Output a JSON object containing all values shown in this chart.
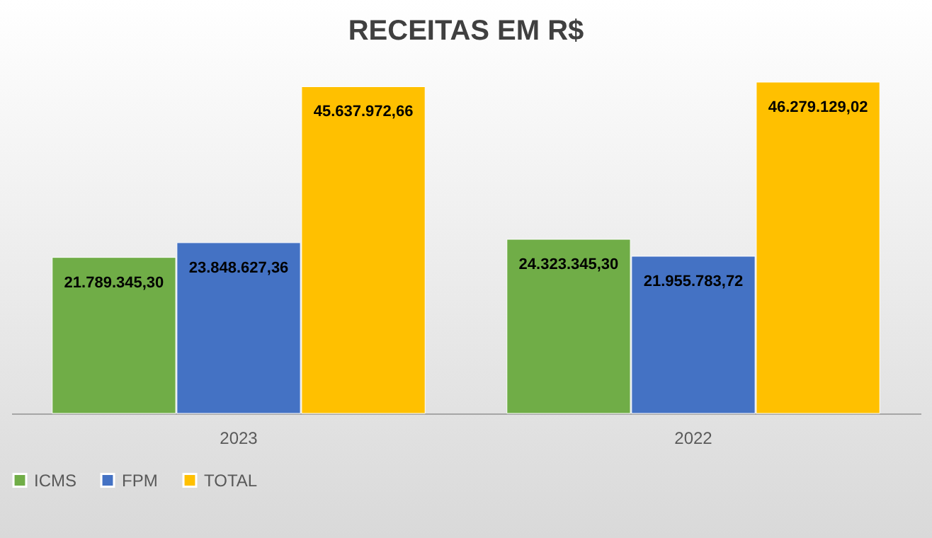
{
  "chart_data": {
    "type": "bar",
    "title": "RECEITAS EM R$",
    "categories": [
      "2023",
      "2022"
    ],
    "series": [
      {
        "name": "ICMS",
        "color": "#70ad47",
        "values": [
          21789345.3,
          24323345.3
        ],
        "value_labels": [
          "21.789.345,30",
          "24.323.345,30"
        ]
      },
      {
        "name": "FPM",
        "color": "#4472c4",
        "values": [
          23848627.36,
          21955783.72
        ],
        "value_labels": [
          "23.848.627,36",
          "21.955.783,72"
        ]
      },
      {
        "name": "TOTAL",
        "color": "#ffc000",
        "values": [
          45637972.66,
          46279129.02
        ],
        "value_labels": [
          "45.637.972,66",
          "46.279.129,02"
        ]
      }
    ],
    "legend": "bottom",
    "tick_labels": "x",
    "grid": false
  }
}
